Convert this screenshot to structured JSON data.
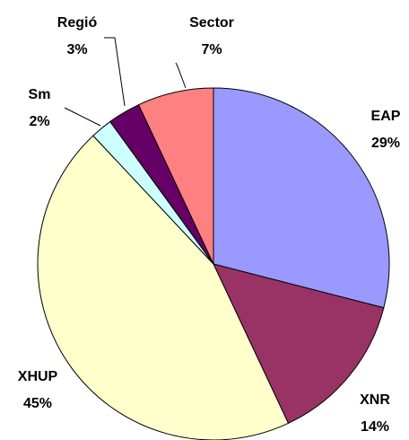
{
  "chart_data": {
    "type": "pie",
    "categories": [
      "EAP",
      "XNR",
      "XHUP",
      "Sm",
      "Regió",
      "Sector"
    ],
    "values": [
      29,
      14,
      45,
      2,
      3,
      7
    ],
    "value_labels": [
      "29%",
      "14%",
      "45%",
      "2%",
      "3%",
      "7%"
    ],
    "colors": [
      "#9999ff",
      "#993366",
      "#ffffcc",
      "#ccffff",
      "#660066",
      "#ff8080"
    ]
  }
}
